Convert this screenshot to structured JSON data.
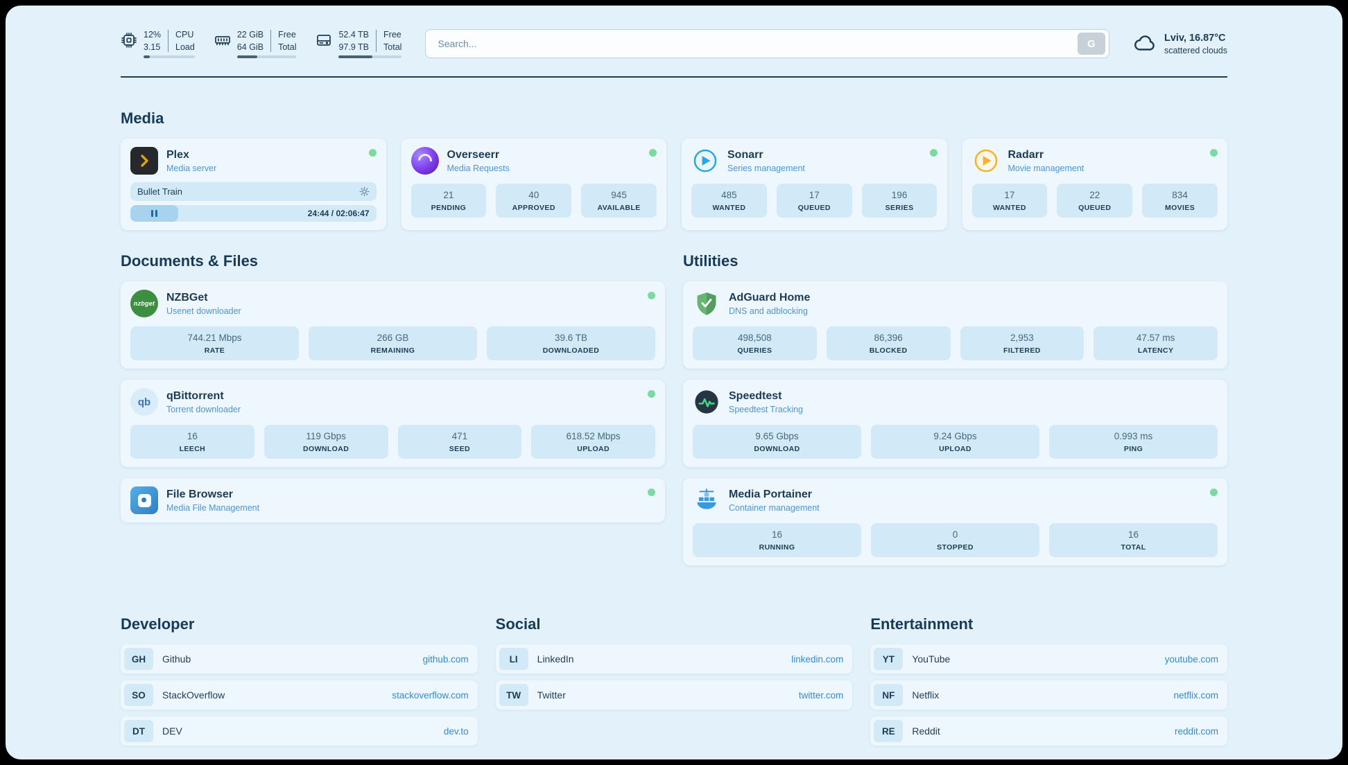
{
  "theme": {
    "background": "#e3f1fa",
    "card": "#eef7fd",
    "chip": "#d2e9f7",
    "ink": "#1d3b53",
    "accent": "#4d94d0",
    "link": "#2e8bd8",
    "online_green": "#7cd9a2"
  },
  "topbar": {
    "cpu": {
      "icon": "cpu-chip-icon",
      "value1": "12%",
      "value2": "3.15",
      "label1": "CPU",
      "label2": "Load",
      "percent": 12
    },
    "memory": {
      "icon": "memory-icon",
      "value1": "22 GiB",
      "value2": "64 GiB",
      "label1": "Free",
      "label2": "Total",
      "percent": 34
    },
    "disk": {
      "icon": "hard-disk-icon",
      "value1": "52.4 TB",
      "value2": "97.9 TB",
      "label1": "Free",
      "label2": "Total",
      "percent": 53
    },
    "search": {
      "placeholder": "Search...",
      "provider": "G"
    },
    "weather": {
      "icon": "cloud-icon",
      "location": "Lviv, 16.87°C",
      "condition": "scattered clouds"
    }
  },
  "media": {
    "title": "Media",
    "plex": {
      "name": "Plex",
      "subtitle": "Media server",
      "online": true,
      "now_playing": {
        "title": "Bullet Train",
        "time": "24:44 / 02:06:47",
        "progress_percent": 19.5
      }
    },
    "overseerr": {
      "name": "Overseerr",
      "subtitle": "Media Requests",
      "online": true,
      "stats": [
        {
          "value": "21",
          "label": "PENDING"
        },
        {
          "value": "40",
          "label": "APPROVED"
        },
        {
          "value": "945",
          "label": "AVAILABLE"
        }
      ]
    },
    "sonarr": {
      "name": "Sonarr",
      "subtitle": "Series management",
      "online": true,
      "stats": [
        {
          "value": "485",
          "label": "WANTED"
        },
        {
          "value": "17",
          "label": "QUEUED"
        },
        {
          "value": "196",
          "label": "SERIES"
        }
      ]
    },
    "radarr": {
      "name": "Radarr",
      "subtitle": "Movie management",
      "online": true,
      "stats": [
        {
          "value": "17",
          "label": "WANTED"
        },
        {
          "value": "22",
          "label": "QUEUED"
        },
        {
          "value": "834",
          "label": "MOVIES"
        }
      ]
    }
  },
  "documents": {
    "title": "Documents & Files",
    "nzbget": {
      "name": "NZBGet",
      "subtitle": "Usenet downloader",
      "online": true,
      "logo_text": "nzbget",
      "stats": [
        {
          "value": "744.21 Mbps",
          "label": "RATE"
        },
        {
          "value": "266 GB",
          "label": "REMAINING"
        },
        {
          "value": "39.6 TB",
          "label": "DOWNLOADED"
        }
      ]
    },
    "qbittorrent": {
      "name": "qBittorrent",
      "subtitle": "Torrent downloader",
      "online": true,
      "logo_text": "qb",
      "stats": [
        {
          "value": "16",
          "label": "LEECH"
        },
        {
          "value": "119 Gbps",
          "label": "DOWNLOAD"
        },
        {
          "value": "471",
          "label": "SEED"
        },
        {
          "value": "618.52 Mbps",
          "label": "UPLOAD"
        }
      ]
    },
    "filebrowser": {
      "name": "File Browser",
      "subtitle": "Media File Management",
      "online": true
    }
  },
  "utilities": {
    "title": "Utilities",
    "adguard": {
      "name": "AdGuard Home",
      "subtitle": "DNS and adblocking",
      "stats": [
        {
          "value": "498,508",
          "label": "QUERIES"
        },
        {
          "value": "86,396",
          "label": "BLOCKED"
        },
        {
          "value": "2,953",
          "label": "FILTERED"
        },
        {
          "value": "47.57 ms",
          "label": "LATENCY"
        }
      ]
    },
    "speedtest": {
      "name": "Speedtest",
      "subtitle": "Speedtest Tracking",
      "stats": [
        {
          "value": "9.65 Gbps",
          "label": "DOWNLOAD"
        },
        {
          "value": "9.24 Gbps",
          "label": "UPLOAD"
        },
        {
          "value": "0.993 ms",
          "label": "PING"
        }
      ]
    },
    "portainer": {
      "name": "Media Portainer",
      "subtitle": "Container management",
      "online": true,
      "stats": [
        {
          "value": "16",
          "label": "RUNNING"
        },
        {
          "value": "0",
          "label": "STOPPED"
        },
        {
          "value": "16",
          "label": "TOTAL"
        }
      ]
    }
  },
  "bookmarks": {
    "developer": {
      "title": "Developer",
      "links": [
        {
          "abbr": "GH",
          "name": "Github",
          "url": "github.com"
        },
        {
          "abbr": "SO",
          "name": "StackOverflow",
          "url": "stackoverflow.com"
        },
        {
          "abbr": "DT",
          "name": "DEV",
          "url": "dev.to"
        }
      ]
    },
    "social": {
      "title": "Social",
      "links": [
        {
          "abbr": "LI",
          "name": "LinkedIn",
          "url": "linkedin.com"
        },
        {
          "abbr": "TW",
          "name": "Twitter",
          "url": "twitter.com"
        }
      ]
    },
    "entertainment": {
      "title": "Entertainment",
      "links": [
        {
          "abbr": "YT",
          "name": "YouTube",
          "url": "youtube.com"
        },
        {
          "abbr": "NF",
          "name": "Netflix",
          "url": "netflix.com"
        },
        {
          "abbr": "RE",
          "name": "Reddit",
          "url": "reddit.com"
        }
      ]
    }
  }
}
